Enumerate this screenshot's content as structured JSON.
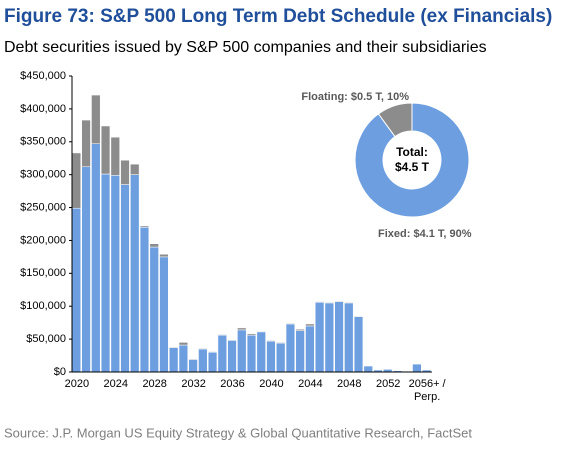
{
  "chart_data": [
    {
      "type": "bar",
      "stacked": true,
      "title": "Figure 73: S&P 500 Long Term Debt Schedule (ex Financials)",
      "subtitle": "Debt securities issued by S&P 500 companies and their subsidiaries",
      "source": "Source: J.P. Morgan US Equity Strategy & Global Quantitative Research, FactSet",
      "categories": [
        "2020",
        null,
        null,
        null,
        "2024",
        null,
        null,
        null,
        "2028",
        null,
        null,
        null,
        "2032",
        null,
        null,
        null,
        "2036",
        null,
        null,
        null,
        "2040",
        null,
        null,
        null,
        "2044",
        null,
        null,
        null,
        "2048",
        null,
        null,
        null,
        "2052",
        null,
        null,
        null,
        "2056+ / Perp."
      ],
      "series": [
        {
          "color": "#6c9ee0",
          "values": [
            249000,
            312000,
            347000,
            301000,
            299000,
            285000,
            300000,
            220000,
            190000,
            175000,
            37000,
            41000,
            19000,
            35000,
            30000,
            56000,
            48000,
            64000,
            56000,
            61000,
            47000,
            44000,
            73000,
            63000,
            70000,
            106000,
            105000,
            107000,
            105000,
            84000,
            9000,
            3000,
            4000,
            2000,
            1000,
            12000,
            3000
          ]
        },
        {
          "color": "#8c8c8c",
          "values": [
            84000,
            71000,
            74000,
            73000,
            58000,
            37000,
            16000,
            2000,
            5000,
            4000,
            1000,
            4000,
            1000,
            1000,
            1000,
            1000,
            1000,
            3000,
            2000,
            1000,
            1000,
            1000,
            1000,
            2000,
            3000,
            1000,
            1000,
            1000,
            1000,
            1000,
            0,
            0,
            0,
            0,
            0,
            0,
            0
          ]
        }
      ],
      "ylim": [
        0,
        450000
      ],
      "yticks": [
        {
          "value": 0,
          "label": "$0"
        },
        {
          "value": 50000,
          "label": "$50,000"
        },
        {
          "value": 100000,
          "label": "$100,000"
        },
        {
          "value": 150000,
          "label": "$150,000"
        },
        {
          "value": 200000,
          "label": "$200,000"
        },
        {
          "value": 250000,
          "label": "$250,000"
        },
        {
          "value": 300000,
          "label": "$300,000"
        },
        {
          "value": 350000,
          "label": "$350,000"
        },
        {
          "value": 400000,
          "label": "$400,000"
        },
        {
          "value": 450000,
          "label": "$450,000"
        }
      ]
    },
    {
      "type": "pie",
      "donut": true,
      "values": [
        90,
        10
      ],
      "value_labels": [
        "Fixed: $4.1 T, 90%",
        "Floating: $0.5 T, 10%"
      ],
      "colors": [
        "#6c9ee0",
        "#8c8c8c"
      ],
      "center_label": [
        "Total:",
        "$4.5 T"
      ]
    }
  ]
}
